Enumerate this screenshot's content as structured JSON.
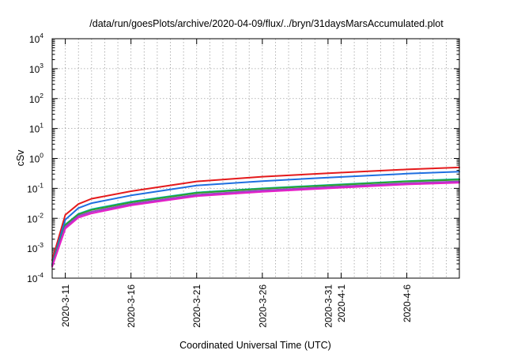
{
  "chart_data": {
    "type": "line",
    "title": "/data/run/goesPlots/archive/2020-04-09/flux/../bryn/31daysMarsAccumulated.plot",
    "xlabel": "Coordinated Universal Time (UTC)",
    "ylabel": "cSv",
    "yscale": "log",
    "ylim": [
      0.0001,
      10000
    ],
    "xlim": [
      "2020-03-10",
      "2020-04-10"
    ],
    "grid": true,
    "legend": "none",
    "y_tick_labels": [
      {
        "base": "10",
        "exp": "-4"
      },
      {
        "base": "10",
        "exp": "-3"
      },
      {
        "base": "10",
        "exp": "-2"
      },
      {
        "base": "10",
        "exp": "-1"
      },
      {
        "base": "10",
        "exp": "0"
      },
      {
        "base": "10",
        "exp": "1"
      },
      {
        "base": "10",
        "exp": "2"
      },
      {
        "base": "10",
        "exp": "3"
      },
      {
        "base": "10",
        "exp": "4"
      }
    ],
    "x_tick_labels": [
      {
        "label": "2020-3-11",
        "date": "2020-03-11"
      },
      {
        "label": "2020-3-16",
        "date": "2020-03-16"
      },
      {
        "label": "2020-3-21",
        "date": "2020-03-21"
      },
      {
        "label": "2020-3-26",
        "date": "2020-03-26"
      },
      {
        "label": "2020-3-31",
        "date": "2020-03-31"
      },
      {
        "label": "2020-4-1",
        "date": "2020-04-01"
      },
      {
        "label": "2020-4-6",
        "date": "2020-04-06"
      }
    ],
    "series": [
      {
        "color": "#e41a1c",
        "x": [
          "2020-03-10",
          "2020-03-11",
          "2020-03-12",
          "2020-03-13",
          "2020-03-16",
          "2020-03-21",
          "2020-03-26",
          "2020-03-31",
          "2020-04-06",
          "2020-04-10"
        ],
        "y": [
          0.0004,
          0.013,
          0.03,
          0.045,
          0.08,
          0.17,
          0.245,
          0.32,
          0.43,
          0.5
        ]
      },
      {
        "color": "#1f6fe0",
        "x": [
          "2020-03-10",
          "2020-03-11",
          "2020-03-12",
          "2020-03-13",
          "2020-03-16",
          "2020-03-21",
          "2020-03-26",
          "2020-03-31",
          "2020-04-06",
          "2020-04-10"
        ],
        "y": [
          0.0003,
          0.009,
          0.022,
          0.032,
          0.058,
          0.125,
          0.175,
          0.23,
          0.31,
          0.36
        ]
      },
      {
        "color": "#00b5b0",
        "x": [
          "2020-03-10",
          "2020-03-11",
          "2020-03-12",
          "2020-03-13",
          "2020-03-16",
          "2020-03-21",
          "2020-03-26",
          "2020-03-31",
          "2020-04-06",
          "2020-04-10"
        ],
        "y": [
          0.00028,
          0.0062,
          0.014,
          0.02,
          0.036,
          0.073,
          0.1,
          0.13,
          0.175,
          0.205
        ]
      },
      {
        "color": "#2ca02c",
        "x": [
          "2020-03-10",
          "2020-03-11",
          "2020-03-12",
          "2020-03-13",
          "2020-03-16",
          "2020-03-21",
          "2020-03-26",
          "2020-03-31",
          "2020-04-06",
          "2020-04-10"
        ],
        "y": [
          0.00027,
          0.006,
          0.0135,
          0.019,
          0.034,
          0.07,
          0.097,
          0.125,
          0.17,
          0.195
        ]
      },
      {
        "color": "#9b40c7",
        "x": [
          "2020-03-10",
          "2020-03-11",
          "2020-03-12",
          "2020-03-13",
          "2020-03-16",
          "2020-03-21",
          "2020-03-26",
          "2020-03-31",
          "2020-04-06",
          "2020-04-10"
        ],
        "y": [
          0.00025,
          0.0052,
          0.012,
          0.0165,
          0.03,
          0.061,
          0.085,
          0.11,
          0.148,
          0.17
        ]
      },
      {
        "color": "#e620c8",
        "x": [
          "2020-03-10",
          "2020-03-11",
          "2020-03-12",
          "2020-03-13",
          "2020-03-16",
          "2020-03-21",
          "2020-03-26",
          "2020-03-31",
          "2020-04-06",
          "2020-04-10"
        ],
        "y": [
          0.00024,
          0.0045,
          0.0105,
          0.0145,
          0.027,
          0.055,
          0.077,
          0.1,
          0.135,
          0.155
        ]
      }
    ]
  }
}
